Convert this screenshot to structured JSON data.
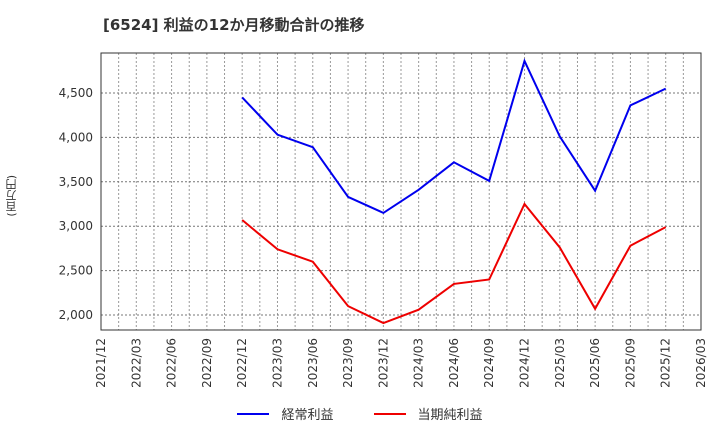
{
  "title": "[6524]  利益の12か月移動合計の推移",
  "y_unit_label": "(百万円)",
  "legend": [
    {
      "label": "経常利益",
      "color": "#0000ee"
    },
    {
      "label": "当期純利益",
      "color": "#ee0000"
    }
  ],
  "chart_data": {
    "type": "line",
    "title": "[6524]  利益の12か月移動合計の推移",
    "xlabel": "",
    "ylabel": "(百万円)",
    "x_ticks": [
      "2021/12",
      "2022/03",
      "2022/06",
      "2022/09",
      "2022/12",
      "2023/03",
      "2023/06",
      "2023/09",
      "2023/12",
      "2024/03",
      "2024/06",
      "2024/09",
      "2024/12",
      "2025/03",
      "2025/06",
      "2025/09",
      "2025/12",
      "2026/03"
    ],
    "y_ticks": [
      "2,000",
      "2,500",
      "3,000",
      "3,500",
      "4,000",
      "4,500"
    ],
    "ylim": [
      1850,
      4950
    ],
    "grid": true,
    "legend_position": "bottom",
    "categories": [
      "2022/12",
      "2023/03",
      "2023/06",
      "2023/09",
      "2023/12",
      "2024/03",
      "2024/06",
      "2024/09",
      "2024/12",
      "2025/03",
      "2025/06",
      "2025/09",
      "2025/12"
    ],
    "series": [
      {
        "name": "経常利益",
        "color": "#0000ee",
        "values": [
          4450,
          4030,
          3890,
          3330,
          3150,
          3410,
          3720,
          3510,
          4860,
          4010,
          3400,
          4360,
          4550
        ]
      },
      {
        "name": "当期純利益",
        "color": "#ee0000",
        "values": [
          3070,
          2740,
          2600,
          2100,
          1910,
          2060,
          2350,
          2400,
          3250,
          2760,
          2070,
          2780,
          2990
        ]
      }
    ]
  }
}
